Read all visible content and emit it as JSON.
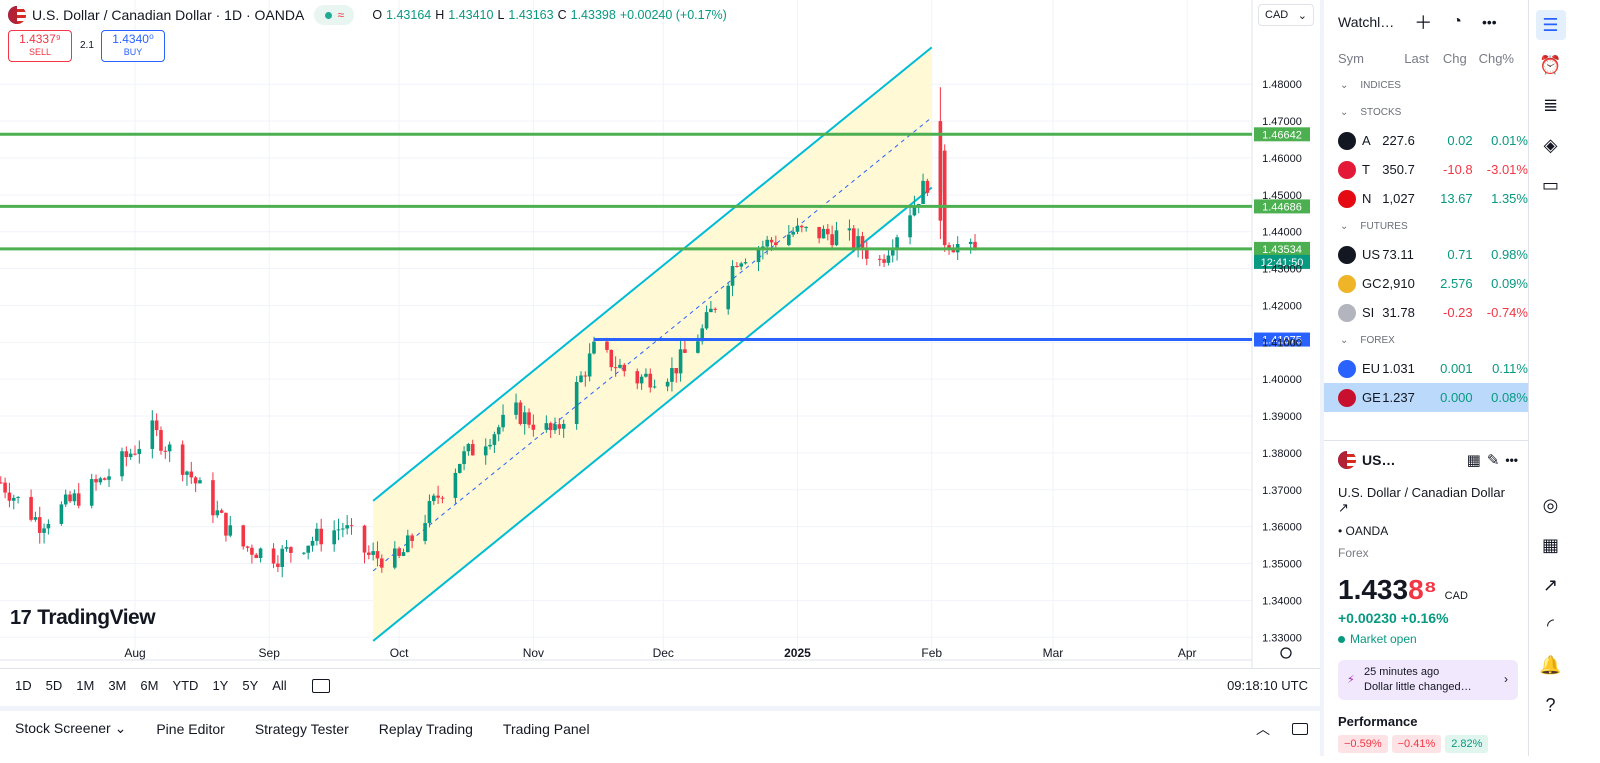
{
  "header": {
    "title": "U.S. Dollar / Canadian Dollar · 1D · OANDA",
    "o_label": "O",
    "o_value": "1.43164",
    "h_label": "H",
    "h_value": "1.43410",
    "l_label": "L",
    "l_value": "1.43163",
    "c_label": "C",
    "c_value": "1.43398",
    "change": "+0.00240 (+0.17%)",
    "pill_symbol": "≈",
    "currency": "CAD",
    "currency_caret": "⌄"
  },
  "trade": {
    "sell_price": "1.4337⁹",
    "sell_label": "SELL",
    "spread": "2.1",
    "buy_price": "1.4340⁰",
    "buy_label": "BUY"
  },
  "logo": {
    "mark": "17",
    "text": "TradingView"
  },
  "chart_data": {
    "type": "candlestick",
    "y_ticks": [
      "1.48000",
      "1.47000",
      "1.46000",
      "1.45000",
      "1.44000",
      "1.43000",
      "1.42000",
      "1.41000",
      "1.40000",
      "1.39000",
      "1.38000",
      "1.37000",
      "1.36000",
      "1.35000",
      "1.34000",
      "1.33000"
    ],
    "x_ticks": [
      "Aug",
      "Sep",
      "Oct",
      "Nov",
      "Dec",
      "2025",
      "Feb",
      "Mar",
      "Apr"
    ],
    "ylim": [
      1.326,
      1.492
    ],
    "horizontal_lines": [
      {
        "label": "1.46642",
        "color": "#4caf50",
        "value": 1.46642
      },
      {
        "label": "1.44686",
        "color": "#4caf50",
        "value": 1.44686
      },
      {
        "label": "1.43534",
        "color": "#4caf50",
        "value": 1.43534
      },
      {
        "label": "1.41075",
        "color": "#2962ff",
        "value": 1.41075
      }
    ],
    "last_price_label": "12:41:50",
    "channel": {
      "color": "#00bcd4",
      "fill": "#fff9d6",
      "start_date": "2024-09-25",
      "end_date": "2025-02-01",
      "upper": [
        1.367,
        1.49
      ],
      "lower": [
        1.329,
        1.452
      ],
      "mid": [
        1.348,
        1.471
      ]
    },
    "colors": {
      "up": "#089981",
      "down": "#f23645"
    }
  },
  "timebar": {
    "ranges": [
      "1D",
      "5D",
      "1M",
      "3M",
      "6M",
      "YTD",
      "1Y",
      "5Y",
      "All"
    ],
    "clock": "09:18:10 UTC"
  },
  "bottombar": {
    "tabs": [
      "Stock Screener",
      "Pine Editor",
      "Strategy Tester",
      "Replay Trading",
      "Trading Panel"
    ],
    "screener_caret": "⌄"
  },
  "watchlist": {
    "title": "Watchl…",
    "cols": [
      "Sym",
      "Last",
      "Chg",
      "Chg%"
    ],
    "sections": {
      "indices": "INDICES",
      "stocks": "STOCKS",
      "futures": "FUTURES",
      "forex": "FOREX"
    },
    "stocks": [
      {
        "sym": "A",
        "last": "227.6",
        "chg": "0.02",
        "pct": "0.01%",
        "icon_color": "#131722",
        "dir": "pos"
      },
      {
        "sym": "T",
        "last": "350.7",
        "chg": "-10.8",
        "pct": "-3.01%",
        "icon_color": "#e31937",
        "dir": "neg"
      },
      {
        "sym": "N",
        "last": "1,027",
        "chg": "13.67",
        "pct": "1.35%",
        "icon_color": "#e50914",
        "dir": "pos"
      }
    ],
    "futures": [
      {
        "sym": "US",
        "last": "73.11",
        "chg": "0.71",
        "pct": "0.98%",
        "icon_color": "#131722",
        "dir": "pos"
      },
      {
        "sym": "GC",
        "last": "2,910",
        "chg": "2.576",
        "pct": "0.09%",
        "icon_color": "#f0b429",
        "dir": "pos"
      },
      {
        "sym": "SI",
        "last": "31.78",
        "chg": "-0.23",
        "pct": "-0.74%",
        "icon_color": "#b2b5be",
        "dir": "neg"
      }
    ],
    "forex": [
      {
        "sym": "EU",
        "last": "1.031",
        "chg": "0.001",
        "pct": "0.11%",
        "icon_color": "#2962ff",
        "dir": "pos"
      },
      {
        "sym": "GE",
        "last": "1.237",
        "chg": "0.000",
        "pct": "0.08%",
        "icon_color": "#c8102e",
        "dir": "pos"
      }
    ]
  },
  "detail": {
    "short": "US…",
    "name": "U.S. Dollar / Canadian Dollar",
    "exchange": "OANDA",
    "type": "Forex",
    "price_main": "1.433",
    "price_tail": "8⁸",
    "price_ccy": "CAD",
    "change": "+0.00230  +0.16%",
    "status": "Market open",
    "news_time": "25 minutes ago",
    "news_text": "Dollar little changed…",
    "performance": "Performance",
    "perf_values": [
      "−0.59%",
      "−0.41%",
      "2.82%"
    ]
  }
}
